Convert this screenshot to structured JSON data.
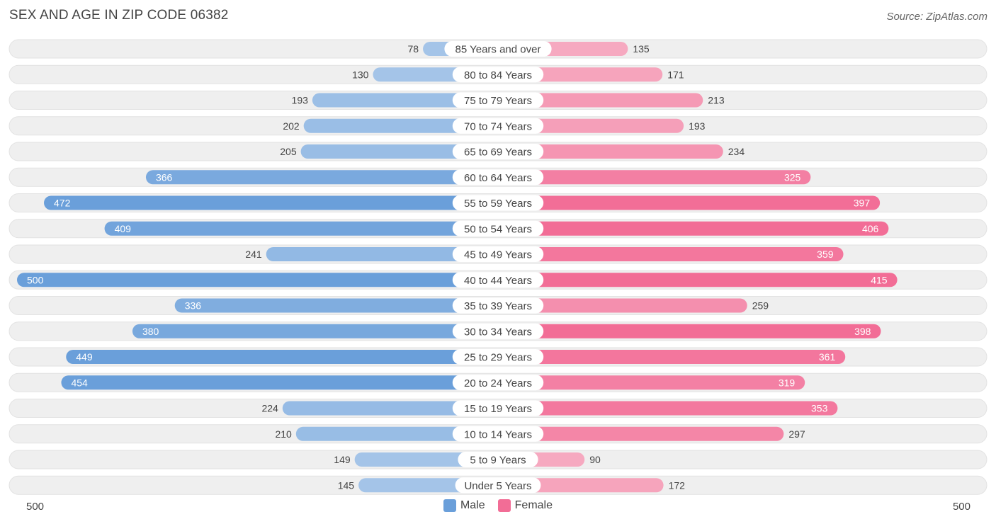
{
  "title": "SEX AND AGE IN ZIP CODE 06382",
  "source": "Source: ZipAtlas.com",
  "colors": {
    "male_light": "#a4c4e8",
    "male_dark": "#6a9fda",
    "female_light": "#f6a9c0",
    "female_dark": "#f26d96",
    "row_bg": "#efefef"
  },
  "axis": {
    "left_label": "500",
    "right_label": "500"
  },
  "legend": [
    {
      "name": "Male",
      "color": "#6a9fda"
    },
    {
      "name": "Female",
      "color": "#f26d96"
    }
  ],
  "chart_data": {
    "type": "bar",
    "orientation": "horizontal-butterfly",
    "xlim": [
      0,
      500
    ],
    "categories": [
      "85 Years and over",
      "80 to 84 Years",
      "75 to 79 Years",
      "70 to 74 Years",
      "65 to 69 Years",
      "60 to 64 Years",
      "55 to 59 Years",
      "50 to 54 Years",
      "45 to 49 Years",
      "40 to 44 Years",
      "35 to 39 Years",
      "30 to 34 Years",
      "25 to 29 Years",
      "20 to 24 Years",
      "15 to 19 Years",
      "10 to 14 Years",
      "5 to 9 Years",
      "Under 5 Years"
    ],
    "series": [
      {
        "name": "Male",
        "values": [
          78,
          130,
          193,
          202,
          205,
          366,
          472,
          409,
          241,
          500,
          336,
          380,
          449,
          454,
          224,
          210,
          149,
          145
        ]
      },
      {
        "name": "Female",
        "values": [
          135,
          171,
          213,
          193,
          234,
          325,
          397,
          406,
          359,
          415,
          259,
          398,
          361,
          319,
          353,
          297,
          90,
          172
        ]
      }
    ]
  }
}
